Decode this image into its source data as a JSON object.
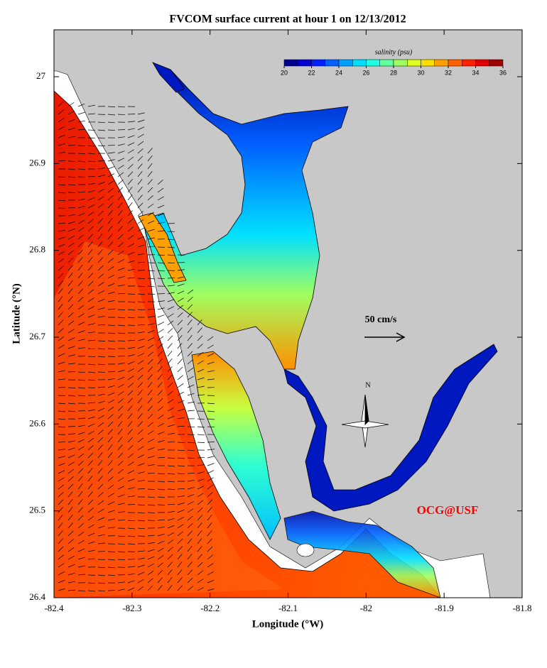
{
  "title": "FVCOM surface current at hour 1 on 12/13/2012",
  "x_axis": {
    "label": "Longitude (°W)",
    "lim": [
      -82.4,
      -81.8
    ],
    "ticks": [
      -82.4,
      -82.3,
      -82.2,
      -82.1,
      -82,
      -81.9,
      -81.8
    ]
  },
  "y_axis": {
    "label": "Latitude (°N)",
    "lim": [
      26.4,
      27.054
    ],
    "ticks": [
      26.4,
      26.5,
      26.6,
      26.7,
      26.8,
      26.9,
      27
    ]
  },
  "colorbar": {
    "label": "salinity (psu)",
    "lim": [
      20,
      36
    ],
    "ticks": [
      20,
      22,
      24,
      26,
      28,
      30,
      32,
      34,
      36
    ],
    "colors": [
      "#00008f",
      "#0000cf",
      "#0020ff",
      "#0060ff",
      "#00a0ff",
      "#00dfff",
      "#20ffdf",
      "#60ffa0",
      "#a0ff60",
      "#dfff20",
      "#ffdf00",
      "#ffa000",
      "#ff6000",
      "#ff2000",
      "#df0000",
      "#9f0000"
    ]
  },
  "scale_arrow": {
    "label": "50 cm/s"
  },
  "compass": {
    "label": "N"
  },
  "credit": "OCG@USF"
}
